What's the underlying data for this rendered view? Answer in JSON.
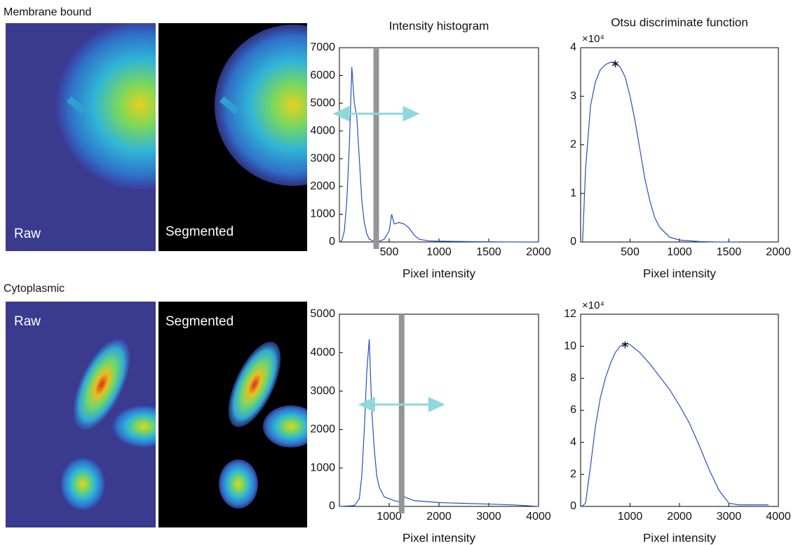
{
  "panels": [
    {
      "title": "Membrane bound",
      "labels": [
        "Raw",
        "Segmented"
      ]
    },
    {
      "title": "Cytoplasmic",
      "labels": [
        "Raw",
        "Segmented"
      ]
    }
  ],
  "chart_data": [
    {
      "type": "line",
      "title": "Intensity histogram",
      "x_label": "Pixel intensity",
      "color": "#2b4fb8",
      "x": [
        0,
        25,
        50,
        75,
        100,
        125,
        150,
        175,
        200,
        225,
        250,
        275,
        300,
        350,
        400,
        450,
        500,
        525,
        550,
        600,
        650,
        700,
        750,
        800,
        900,
        1000,
        1200,
        1400,
        1600,
        1800,
        2000
      ],
      "values": [
        0,
        50,
        400,
        1500,
        3500,
        6300,
        5000,
        4500,
        3000,
        1500,
        700,
        300,
        100,
        20,
        20,
        100,
        400,
        1000,
        650,
        700,
        650,
        500,
        250,
        100,
        40,
        30,
        20,
        10,
        5,
        0,
        0
      ],
      "threshold": 370,
      "xlim": [
        0,
        2000
      ],
      "ylim": [
        0,
        7000
      ],
      "xticks": [
        500,
        1000,
        1500,
        2000
      ],
      "yticks": [
        0,
        1000,
        2000,
        3000,
        4000,
        5000,
        6000,
        7000
      ]
    },
    {
      "type": "line",
      "title": "Otsu discriminate function",
      "x_label": "Pixel intensity",
      "y_multiplier": "×10⁴",
      "color": "#2b4fb8",
      "x": [
        20,
        50,
        100,
        150,
        200,
        250,
        300,
        350,
        400,
        450,
        500,
        550,
        600,
        650,
        700,
        750,
        800,
        900,
        1000,
        1200,
        1400,
        1600
      ],
      "values": [
        0,
        1.5,
        2.8,
        3.3,
        3.55,
        3.65,
        3.7,
        3.7,
        3.6,
        3.4,
        3.0,
        2.5,
        1.9,
        1.3,
        0.85,
        0.5,
        0.3,
        0.1,
        0.04,
        0.01,
        0,
        0
      ],
      "peak_x": 350,
      "peak_y": 3.7,
      "xlim": [
        0,
        2000
      ],
      "ylim": [
        0,
        4
      ],
      "xticks": [
        500,
        1000,
        1500,
        2000
      ],
      "yticks": [
        0,
        1,
        2,
        3,
        4
      ]
    },
    {
      "type": "line",
      "x_label": "Pixel intensity",
      "color": "#2b4fb8",
      "x": [
        0,
        300,
        400,
        450,
        500,
        550,
        600,
        650,
        700,
        750,
        800,
        900,
        1000,
        1100,
        1200,
        1300,
        1500,
        2000,
        2500,
        3000,
        3500,
        4000
      ],
      "values": [
        0,
        20,
        200,
        800,
        2000,
        3500,
        4350,
        2500,
        1500,
        800,
        500,
        250,
        200,
        150,
        120,
        250,
        150,
        100,
        80,
        60,
        40,
        0
      ],
      "threshold": 1250,
      "xlim": [
        0,
        4000
      ],
      "ylim": [
        0,
        5000
      ],
      "xticks": [
        1000,
        2000,
        3000,
        4000
      ],
      "yticks": [
        0,
        1000,
        2000,
        3000,
        4000,
        5000
      ]
    },
    {
      "type": "line",
      "x_label": "Pixel intensity",
      "y_multiplier": "×10⁴",
      "color": "#2b4fb8",
      "x": [
        20,
        100,
        200,
        300,
        400,
        500,
        600,
        700,
        800,
        900,
        1000,
        1200,
        1400,
        1600,
        1800,
        2000,
        2200,
        2400,
        2600,
        2800,
        3000,
        3200,
        3500,
        3800
      ],
      "values": [
        0,
        0.2,
        2.5,
        5,
        6.8,
        8,
        8.9,
        9.6,
        10,
        10.2,
        10.1,
        9.6,
        8.9,
        8.1,
        7.3,
        6.3,
        5.2,
        3.8,
        2.3,
        1,
        0.2,
        0.1,
        0.1,
        0.1
      ],
      "peak_x": 900,
      "peak_y": 10.2,
      "xlim": [
        0,
        4000
      ],
      "ylim": [
        0,
        12
      ],
      "xticks": [
        1000,
        2000,
        3000,
        4000
      ],
      "yticks": [
        0,
        2,
        4,
        6,
        8,
        10,
        12
      ]
    }
  ]
}
